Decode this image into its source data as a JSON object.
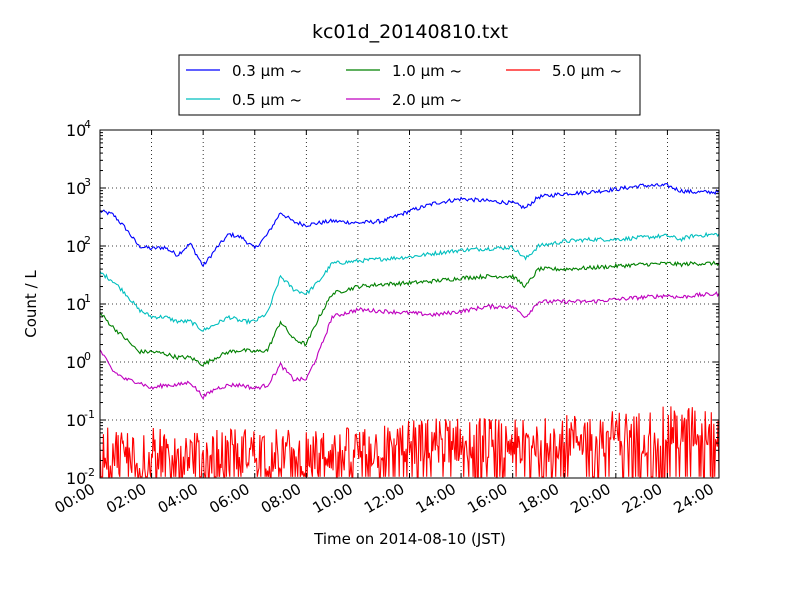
{
  "chart_data": {
    "type": "line",
    "title": "kc01d_20140810.txt",
    "xlabel": "Time on 2014-08-10 (JST)",
    "ylabel": "Count / L",
    "y_scale": "log",
    "ylim": [
      0.01,
      10000
    ],
    "xlim": [
      "2014-08-10 00:00",
      "2014-08-11 00:00"
    ],
    "grid": true,
    "legend_position": "top-center",
    "x_tick_labels": [
      "00:00",
      "02:00",
      "04:00",
      "06:00",
      "08:00",
      "10:00",
      "12:00",
      "14:00",
      "16:00",
      "18:00",
      "20:00",
      "22:00",
      "24:00"
    ],
    "y_tick_labels": [
      {
        "base": "10",
        "exp": "-2"
      },
      {
        "base": "10",
        "exp": "-1"
      },
      {
        "base": "10",
        "exp": "0"
      },
      {
        "base": "10",
        "exp": "1"
      },
      {
        "base": "10",
        "exp": "2"
      },
      {
        "base": "10",
        "exp": "3"
      },
      {
        "base": "10",
        "exp": "4"
      }
    ],
    "series": [
      {
        "name": "0.3 μm ~",
        "color": "#0000ff",
        "x": [
          "00:00",
          "00:30",
          "01:00",
          "01:30",
          "02:00",
          "02:30",
          "03:00",
          "03:30",
          "04:00",
          "04:30",
          "05:00",
          "05:30",
          "06:00",
          "06:30",
          "07:00",
          "07:30",
          "08:00",
          "08:30",
          "09:00",
          "10:00",
          "11:00",
          "12:00",
          "13:00",
          "14:00",
          "15:00",
          "16:00",
          "16:30",
          "17:00",
          "18:00",
          "19:00",
          "20:00",
          "21:00",
          "22:00",
          "22:30",
          "23:00",
          "24:00"
        ],
        "y": [
          400,
          350,
          200,
          100,
          90,
          95,
          70,
          110,
          45,
          90,
          160,
          140,
          90,
          160,
          380,
          260,
          230,
          250,
          270,
          250,
          270,
          400,
          550,
          650,
          600,
          550,
          450,
          700,
          800,
          850,
          950,
          1100,
          1100,
          900,
          850,
          850
        ]
      },
      {
        "name": "0.5 μm ~",
        "color": "#00bfbf",
        "x": [
          "00:00",
          "00:30",
          "01:00",
          "01:30",
          "02:00",
          "02:30",
          "03:00",
          "03:30",
          "04:00",
          "04:30",
          "05:00",
          "05:30",
          "06:00",
          "06:30",
          "07:00",
          "07:30",
          "08:00",
          "08:30",
          "09:00",
          "10:00",
          "11:00",
          "12:00",
          "13:00",
          "14:00",
          "15:00",
          "16:00",
          "16:30",
          "17:00",
          "18:00",
          "19:00",
          "20:00",
          "21:00",
          "22:00",
          "22:30",
          "23:00",
          "24:00"
        ],
        "y": [
          35,
          25,
          15,
          8,
          6,
          6,
          5,
          5,
          3.5,
          4.5,
          6,
          5,
          5,
          7,
          30,
          18,
          15,
          25,
          50,
          55,
          60,
          65,
          75,
          85,
          90,
          95,
          60,
          100,
          120,
          130,
          130,
          140,
          150,
          130,
          150,
          160
        ]
      },
      {
        "name": "1.0 μm ~",
        "color": "#008000",
        "x": [
          "00:00",
          "00:30",
          "01:00",
          "01:30",
          "02:00",
          "02:30",
          "03:00",
          "03:30",
          "04:00",
          "04:30",
          "05:00",
          "05:30",
          "06:00",
          "06:30",
          "07:00",
          "07:30",
          "08:00",
          "08:30",
          "09:00",
          "10:00",
          "11:00",
          "12:00",
          "13:00",
          "14:00",
          "15:00",
          "16:00",
          "16:30",
          "17:00",
          "18:00",
          "19:00",
          "20:00",
          "21:00",
          "22:00",
          "22:30",
          "23:00",
          "24:00"
        ],
        "y": [
          7,
          4,
          2.5,
          1.5,
          1.5,
          1.4,
          1.2,
          1.2,
          0.9,
          1.2,
          1.5,
          1.6,
          1.5,
          1.6,
          5,
          2.5,
          2.0,
          6,
          15,
          20,
          22,
          23,
          25,
          28,
          30,
          30,
          20,
          40,
          40,
          42,
          45,
          48,
          50,
          48,
          50,
          50
        ]
      },
      {
        "name": "2.0 μm ~",
        "color": "#bf00bf",
        "x": [
          "00:00",
          "00:30",
          "01:00",
          "01:30",
          "02:00",
          "02:30",
          "03:00",
          "03:30",
          "04:00",
          "04:30",
          "05:00",
          "05:30",
          "06:00",
          "06:30",
          "07:00",
          "07:30",
          "08:00",
          "08:30",
          "09:00",
          "10:00",
          "11:00",
          "12:00",
          "13:00",
          "14:00",
          "15:00",
          "16:00",
          "16:30",
          "17:00",
          "18:00",
          "19:00",
          "20:00",
          "21:00",
          "22:00",
          "22:30",
          "23:00",
          "24:00"
        ],
        "y": [
          1.6,
          0.7,
          0.5,
          0.45,
          0.35,
          0.4,
          0.4,
          0.45,
          0.25,
          0.35,
          0.4,
          0.4,
          0.35,
          0.4,
          0.9,
          0.5,
          0.5,
          1.5,
          6,
          8,
          7.5,
          7,
          6.5,
          7.5,
          9,
          9,
          6,
          11,
          11,
          11,
          12,
          13,
          14,
          13,
          14,
          15
        ]
      },
      {
        "name": "5.0 μm ~",
        "color": "#ff0000",
        "x": [
          "00:00",
          "01:00",
          "02:00",
          "03:00",
          "04:00",
          "05:00",
          "06:00",
          "07:00",
          "08:00",
          "09:00",
          "10:00",
          "11:00",
          "12:00",
          "13:00",
          "14:00",
          "15:00",
          "16:00",
          "17:00",
          "18:00",
          "19:00",
          "20:00",
          "21:00",
          "22:00",
          "23:00",
          "24:00"
        ],
        "y": [
          0.03,
          0.03,
          0.03,
          0.03,
          0.025,
          0.03,
          0.03,
          0.03,
          0.025,
          0.03,
          0.03,
          0.035,
          0.04,
          0.045,
          0.045,
          0.045,
          0.04,
          0.045,
          0.05,
          0.055,
          0.06,
          0.06,
          0.07,
          0.07,
          0.08
        ]
      }
    ]
  }
}
